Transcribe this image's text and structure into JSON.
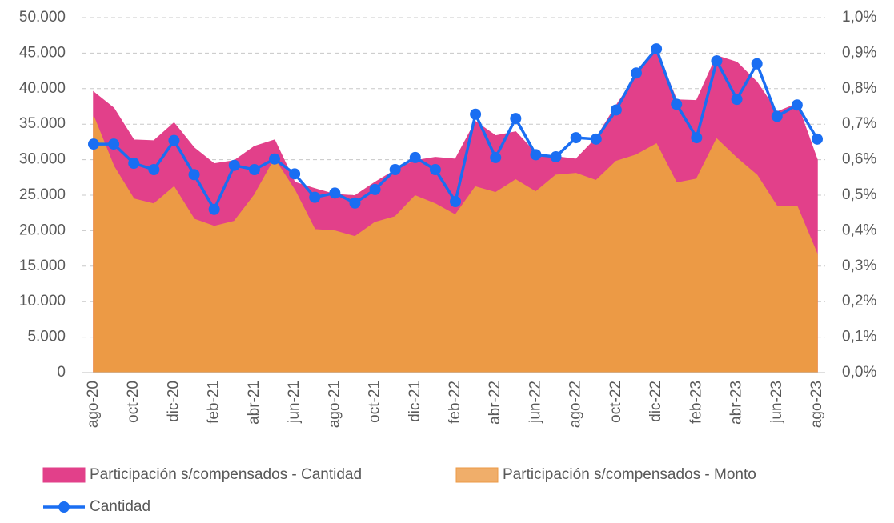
{
  "chart_data": {
    "type": "area",
    "categories": [
      "ago-20",
      null,
      "oct-20",
      null,
      "dic-20",
      null,
      "feb-21",
      null,
      "abr-21",
      null,
      "jun-21",
      null,
      "ago-21",
      null,
      "oct-21",
      null,
      "dic-21",
      null,
      "feb-22",
      null,
      "abr-22",
      null,
      "jun-22",
      null,
      "ago-22",
      null,
      "oct-22",
      null,
      "dic-22",
      null,
      "feb-23",
      null,
      "abr-23",
      null,
      "jun-23",
      null,
      "ago-23"
    ],
    "series": [
      {
        "name": "Participación s/compensados - Cantidad",
        "type": "area",
        "axis": "y2",
        "color": "#e2408a",
        "values": [
          0.79,
          0.745,
          0.655,
          0.653,
          0.703,
          0.633,
          0.588,
          0.597,
          0.637,
          0.655,
          0.536,
          0.518,
          0.502,
          0.498,
          0.536,
          0.57,
          0.597,
          0.606,
          0.601,
          0.707,
          0.667,
          0.678,
          0.617,
          0.608,
          0.601,
          0.66,
          0.752,
          0.836,
          0.908,
          0.768,
          0.766,
          0.892,
          0.874,
          0.818,
          0.734,
          0.757,
          0.599
        ]
      },
      {
        "name": "Participación s/compensados - Monto",
        "type": "area",
        "axis": "y2",
        "color": "#ec9a45",
        "values": [
          0.721,
          0.581,
          0.489,
          0.475,
          0.523,
          0.432,
          0.412,
          0.426,
          0.5,
          0.601,
          0.514,
          0.403,
          0.399,
          0.383,
          0.423,
          0.439,
          0.498,
          0.475,
          0.444,
          0.523,
          0.507,
          0.543,
          0.509,
          0.556,
          0.561,
          0.541,
          0.595,
          0.613,
          0.644,
          0.534,
          0.545,
          0.658,
          0.604,
          0.556,
          0.468,
          0.468,
          0.333
        ]
      },
      {
        "name": "Cantidad",
        "type": "line",
        "color": "#1a6ef2",
        "values": [
          32200,
          32200,
          29500,
          28600,
          32700,
          27900,
          23000,
          29200,
          28600,
          30100,
          28000,
          24700,
          25300,
          23900,
          25800,
          28600,
          30300,
          28600,
          24100,
          36400,
          30300,
          35800,
          30700,
          30400,
          33100,
          32900,
          37000,
          42200,
          45600,
          37800,
          33100,
          43900,
          38500,
          43500,
          36100,
          37700,
          32900
        ]
      }
    ],
    "ylim": [
      0,
      50000
    ],
    "yticks": [
      0,
      {
        "value": 5000,
        "label": "5.000"
      },
      {
        "value": 10000,
        "label": "10.000"
      },
      {
        "value": 15000,
        "label": "15.000"
      },
      {
        "value": 20000,
        "label": "20.000"
      },
      {
        "value": 25000,
        "label": "25.000"
      },
      {
        "value": 30000,
        "label": "30.000"
      },
      {
        "value": 35000,
        "label": "35.000"
      },
      {
        "value": 40000,
        "label": "40.000"
      },
      {
        "value": 45000,
        "label": "45.000"
      },
      {
        "value": 50000,
        "label": "50.000"
      }
    ],
    "y2lim": [
      0,
      1.0
    ],
    "y2ticks": [
      {
        "value": 0,
        "label": "0,0%"
      },
      {
        "value": 0.1,
        "label": "0,1%"
      },
      {
        "value": 0.2,
        "label": "0,2%"
      },
      {
        "value": 0.3,
        "label": "0,3%"
      },
      {
        "value": 0.4,
        "label": "0,4%"
      },
      {
        "value": 0.5,
        "label": "0,5%"
      },
      {
        "value": 0.6,
        "label": "0,6%"
      },
      {
        "value": 0.7,
        "label": "0,7%"
      },
      {
        "value": 0.8,
        "label": "0,8%"
      },
      {
        "value": 0.9,
        "label": "0,9%"
      },
      {
        "value": 1.0,
        "label": "1,0%"
      }
    ],
    "grid": true,
    "legend": "bottom"
  }
}
